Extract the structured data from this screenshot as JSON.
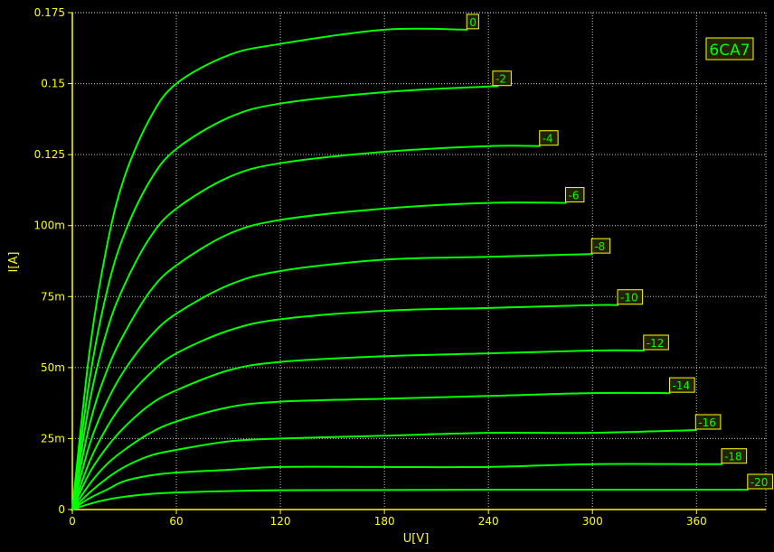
{
  "colors": {
    "background": "#000000",
    "axis": "#ffff00",
    "grid": "#ffffff",
    "curve": "#00ff00",
    "label_border": "#ffff00",
    "label_fill": "#222200"
  },
  "chart_data": {
    "type": "line",
    "title": "6CA7",
    "xlabel": "U[V]",
    "ylabel": "I[A]",
    "xlim": [
      0,
      400
    ],
    "ylim": [
      0,
      0.175
    ],
    "x_ticks": [
      0,
      60,
      120,
      180,
      240,
      300,
      360
    ],
    "x_tick_labels": [
      "0",
      "60",
      "120",
      "180",
      "240",
      "300",
      "360"
    ],
    "y_ticks": [
      0,
      0.025,
      0.05,
      0.075,
      0.1,
      0.125,
      0.15,
      0.175
    ],
    "y_tick_labels": [
      "0",
      "25m",
      "50m",
      "75m",
      "100m",
      "0.125",
      "0.15",
      "0.175"
    ],
    "grid": true,
    "legend": "curve labels at line ends",
    "x": [
      0,
      10,
      20,
      30,
      45,
      60,
      90,
      120,
      180,
      240,
      300,
      360,
      390
    ],
    "series": [
      {
        "name": "0",
        "x_end": 228,
        "values": [
          0,
          0.056,
          0.093,
          0.117,
          0.138,
          0.15,
          0.16,
          0.164,
          0.169,
          0.171,
          null,
          null,
          null
        ]
      },
      {
        "name": "-2",
        "x_end": 243,
        "values": [
          0,
          0.046,
          0.077,
          0.097,
          0.116,
          0.127,
          0.138,
          0.143,
          0.147,
          0.149,
          null,
          null,
          null
        ]
      },
      {
        "name": "-4",
        "x_end": 270,
        "values": [
          0,
          0.038,
          0.063,
          0.079,
          0.096,
          0.106,
          0.117,
          0.122,
          0.126,
          0.128,
          0.129,
          null,
          null
        ]
      },
      {
        "name": "-6",
        "x_end": 285,
        "values": [
          0,
          0.03,
          0.049,
          0.062,
          0.077,
          0.086,
          0.097,
          0.102,
          0.106,
          0.108,
          0.109,
          null,
          null
        ]
      },
      {
        "name": "-8",
        "x_end": 300,
        "values": [
          0,
          0.023,
          0.038,
          0.049,
          0.061,
          0.069,
          0.079,
          0.084,
          0.088,
          0.089,
          0.09,
          null,
          null
        ]
      },
      {
        "name": "-10",
        "x_end": 315,
        "values": [
          0,
          0.017,
          0.029,
          0.038,
          0.048,
          0.055,
          0.063,
          0.067,
          0.07,
          0.071,
          0.072,
          null,
          null
        ]
      },
      {
        "name": "-12",
        "x_end": 330,
        "values": [
          0,
          0.013,
          0.022,
          0.029,
          0.037,
          0.042,
          0.049,
          0.052,
          0.054,
          0.055,
          0.056,
          null,
          null
        ]
      },
      {
        "name": "-14",
        "x_end": 345,
        "values": [
          0,
          0.009,
          0.016,
          0.021,
          0.027,
          0.031,
          0.036,
          0.038,
          0.039,
          0.04,
          0.041,
          null,
          null
        ]
      },
      {
        "name": "-16",
        "x_end": 360,
        "values": [
          0,
          0.006,
          0.011,
          0.015,
          0.019,
          0.021,
          0.024,
          0.025,
          0.026,
          0.027,
          0.027,
          0.028,
          null
        ]
      },
      {
        "name": "-18",
        "x_end": 375,
        "values": [
          0,
          0.004,
          0.007,
          0.01,
          0.012,
          0.013,
          0.014,
          0.015,
          0.015,
          0.015,
          0.016,
          0.016,
          null
        ]
      },
      {
        "name": "-20",
        "x_end": 390,
        "values": [
          0,
          0.002,
          0.0035,
          0.0045,
          0.0055,
          0.006,
          0.0065,
          0.0068,
          0.0069,
          0.007,
          0.007,
          0.007,
          0.007
        ]
      }
    ]
  }
}
